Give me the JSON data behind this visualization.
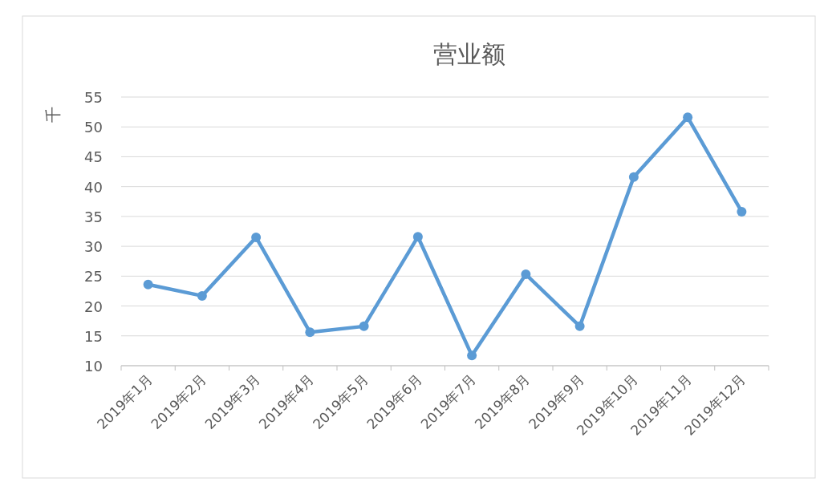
{
  "chart_data": {
    "type": "line",
    "title": "营业额",
    "ylabel": "千",
    "categories": [
      "2019年1月",
      "2019年2月",
      "2019年3月",
      "2019年4月",
      "2019年5月",
      "2019年6月",
      "2019年7月",
      "2019年8月",
      "2019年9月",
      "2019年10月",
      "2019年11月",
      "2019年12月"
    ],
    "series": [
      {
        "color": "#5b9bd5",
        "values": [
          23.6,
          21.7,
          31.5,
          15.6,
          16.6,
          31.6,
          11.7,
          25.3,
          16.6,
          41.6,
          51.6,
          35.8
        ]
      }
    ],
    "ylim": [
      10,
      55
    ],
    "yticks": [
      10,
      15,
      20,
      25,
      30,
      35,
      40,
      45,
      50,
      55
    ],
    "grid": "y",
    "marker": "circle",
    "line_style": "solid"
  }
}
